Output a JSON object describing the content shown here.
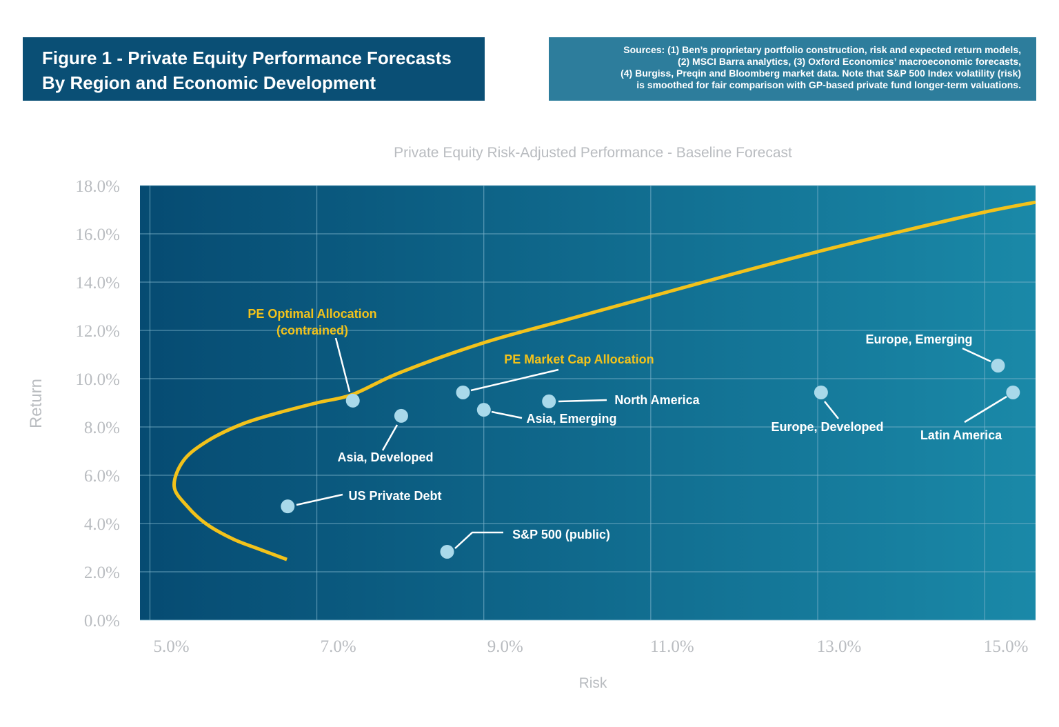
{
  "header": {
    "title_line1": "Figure 1 - Private Equity Performance Forecasts",
    "title_line2": "By Region and Economic Development"
  },
  "sources": {
    "lines": [
      "Sources: (1) Ben’s proprietary portfolio construction, risk and expected return models,",
      "(2) MSCI Barra analytics, (3) Oxford Economics’ macroeconomic  forecasts,",
      "(4) Burgiss, Preqin and Bloomberg market data. Note that S&P 500 Index volatility (risk)",
      "is smoothed for fair comparison with GP-based private  fund longer-term valuations."
    ]
  },
  "chart_data": {
    "type": "scatter",
    "title": "Private Equity Risk-Adjusted Performance  - Baseline Forecast",
    "xlabel": "Risk",
    "ylabel": "Return",
    "xlim": [
      4.88,
      15.61
    ],
    "ylim": [
      0,
      18
    ],
    "xticks": [
      "5.0%",
      "7.0%",
      "9.0%",
      "11.0%",
      "13.0%",
      "15.0%"
    ],
    "xtick_values": [
      5,
      7,
      9,
      11,
      13,
      15
    ],
    "yticks": [
      "0.0%",
      "2.0%",
      "4.0%",
      "6.0%",
      "8.0%",
      "10.0%",
      "12.0%",
      "14.0%",
      "16.0%",
      "18.0%"
    ],
    "ytick_values": [
      0,
      2,
      4,
      6,
      8,
      10,
      12,
      14,
      16,
      18
    ],
    "grid": true,
    "colors": {
      "plot_bg_left": "#064b72",
      "plot_bg_right": "#1a89a8",
      "frontier": "#f2c21b",
      "point": "#a9d9ea",
      "grid": "#7fb5cc"
    },
    "frontier": {
      "x": [
        6.64,
        6.3,
        6.0,
        5.68,
        5.45,
        5.29,
        5.4,
        5.68,
        6.09,
        6.5,
        7.0,
        7.43,
        8.0,
        9.0,
        10.0,
        11.0,
        12.0,
        13.0,
        14.0,
        15.0,
        15.61
      ],
      "y": [
        2.51,
        2.95,
        3.35,
        3.97,
        4.7,
        5.54,
        6.6,
        7.4,
        8.1,
        8.55,
        9.0,
        9.35,
        10.26,
        11.49,
        12.45,
        13.4,
        14.35,
        15.26,
        16.1,
        16.9,
        17.31
      ]
    },
    "points": [
      {
        "label": "PE Optimal Allocation",
        "label2": "(contrained)",
        "x": 7.43,
        "y": 9.09,
        "highlight": true
      },
      {
        "label": "Asia, Developed",
        "x": 8.01,
        "y": 8.46
      },
      {
        "label": "PE Market Cap Allocation",
        "x": 8.75,
        "y": 9.43,
        "highlight": true
      },
      {
        "label": "Asia, Emerging",
        "x": 9.0,
        "y": 8.71
      },
      {
        "label": "North America",
        "x": 9.78,
        "y": 9.06
      },
      {
        "label": "Europe, Developed",
        "x": 13.04,
        "y": 9.43
      },
      {
        "label": "Europe, Emerging",
        "x": 15.16,
        "y": 10.54
      },
      {
        "label": "Latin America",
        "x": 15.34,
        "y": 9.43
      },
      {
        "label": "US Private Debt",
        "x": 6.65,
        "y": 4.71
      },
      {
        "label": "S&P 500 (public)",
        "x": 8.56,
        "y": 2.83
      }
    ]
  }
}
